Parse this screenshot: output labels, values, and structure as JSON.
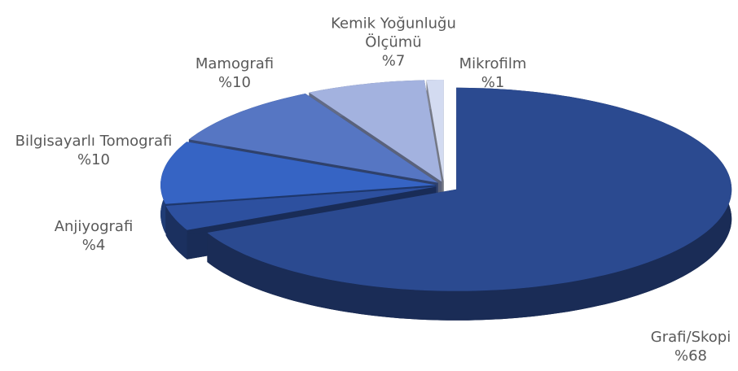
{
  "chart_data": {
    "type": "pie",
    "categories": [
      "Grafi/Skopi",
      "Anjiyografi",
      "Bilgisayarlı Tomografi",
      "Mamografi",
      "Kemik Yoğunluğu Ölçümü",
      "Mikrofilm"
    ],
    "values": [
      68,
      4,
      10,
      10,
      7,
      1
    ],
    "value_labels": [
      "%68",
      "%4",
      "%10",
      "%10",
      "%7",
      "%1"
    ],
    "colors": [
      "#2b4a90",
      "#2d509f",
      "#3664c4",
      "#5676c3",
      "#a3b2df",
      "#d3dbf1"
    ]
  }
}
